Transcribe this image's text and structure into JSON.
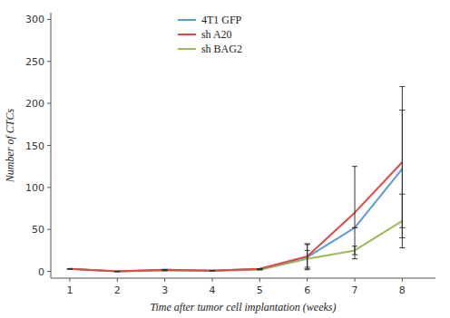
{
  "chart_data": {
    "type": "line",
    "x": [
      1,
      2,
      3,
      4,
      5,
      6,
      7,
      8
    ],
    "xlabel": "Time after tumor cell implantation (weeks)",
    "ylabel": "Number of CTCs",
    "series": [
      {
        "name": "4T1 GFP",
        "color": "#5b9bd5",
        "values": [
          3,
          0,
          2,
          1,
          3,
          17,
          52,
          122
        ],
        "errors": [
          0,
          0,
          0,
          0,
          0,
          15,
          0,
          70
        ]
      },
      {
        "name": "sh A20",
        "color": "#e8473f",
        "values": [
          3,
          0,
          2,
          1,
          3,
          18,
          70,
          130
        ],
        "errors": [
          0,
          0,
          0,
          0,
          0,
          15,
          55,
          90
        ]
      },
      {
        "name": "sh BAG2",
        "color": "#9bbb59",
        "values": [
          3,
          0,
          1,
          1,
          2,
          15,
          25,
          60
        ],
        "errors": [
          0,
          0,
          0,
          0,
          0,
          10,
          5,
          32
        ]
      }
    ],
    "xlim": [
      0.6,
      8.7
    ],
    "ylim": [
      -8,
      308
    ],
    "xticks": [
      1,
      2,
      3,
      4,
      5,
      6,
      7,
      8
    ],
    "yticks": [
      0,
      50,
      100,
      150,
      200,
      250,
      300
    ],
    "grid": false,
    "legend": "top"
  }
}
